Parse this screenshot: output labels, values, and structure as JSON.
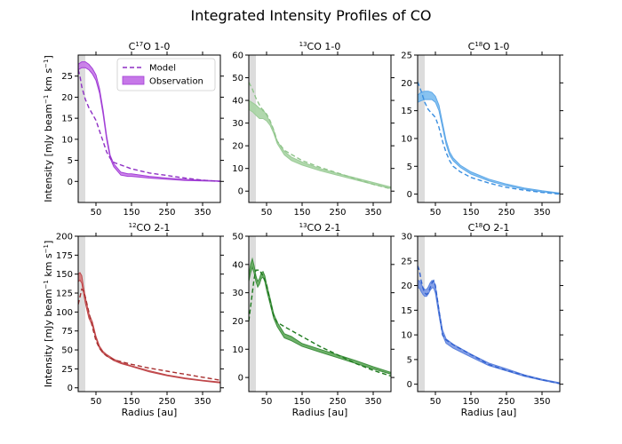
{
  "chart_data": {
    "type": "line",
    "title": "Integrated Intensity Profiles of CO",
    "xlabel": "Radius [au]",
    "ylabel_prefix": "Intensity [mJy beam",
    "ylabel_mid": " km s",
    "ylabel_suffix": "]",
    "ylabel_sup": "−1",
    "xlim": [
      0,
      400
    ],
    "xticks": [
      50,
      150,
      250,
      350
    ],
    "xticklabels": [
      "50",
      "150",
      "250",
      "350"
    ],
    "shaded_region": [
      0,
      20
    ],
    "legend": {
      "placement": "top-right",
      "model_label": "Model",
      "observation_label": "Observation"
    },
    "panels": [
      {
        "title_main": "C",
        "title_sup": "17",
        "title_rest": "O 1-0",
        "color": "#a23fd6",
        "fill": "#c678e8",
        "model_color": "#8e2fc4",
        "ylim": [
          -5,
          30
        ],
        "yticks": [
          0,
          5,
          10,
          15,
          20,
          25
        ],
        "yticklabels": [
          "0",
          "5",
          "10",
          "15",
          "20",
          "25"
        ],
        "model_x": [
          0,
          5,
          10,
          15,
          20,
          25,
          30,
          40,
          50,
          60,
          70,
          80,
          90,
          100,
          150,
          200,
          250,
          300,
          350,
          400
        ],
        "model_y": [
          26.5,
          25,
          22.5,
          21,
          19.5,
          18.5,
          17.5,
          16,
          14.5,
          12,
          9.5,
          7,
          5.5,
          4.5,
          3,
          2,
          1.4,
          0.8,
          0.3,
          0.0
        ],
        "obs_x": [
          0,
          10,
          20,
          30,
          40,
          50,
          60,
          70,
          80,
          90,
          100,
          120,
          140,
          150,
          200,
          250,
          300,
          350,
          400
        ],
        "obs_lo": [
          26.5,
          27,
          27,
          26.5,
          25.5,
          24,
          21,
          16,
          10,
          5.5,
          3.5,
          1.5,
          1.2,
          1.2,
          0.8,
          0.5,
          0.2,
          0.1,
          0.0
        ],
        "obs_hi": [
          27.8,
          28.4,
          28.4,
          27.8,
          26.8,
          25.3,
          22,
          17,
          10.8,
          6.2,
          4.2,
          2.2,
          1.8,
          1.8,
          1.2,
          0.8,
          0.5,
          0.3,
          0.1
        ]
      },
      {
        "title_main": "",
        "title_sup": "13",
        "title_rest": "CO 1-0",
        "color": "#9ccc98",
        "fill": "#a8d4a4",
        "model_color": "#8fc48a",
        "ylim": [
          -5,
          60
        ],
        "yticks": [
          0,
          10,
          20,
          30,
          40,
          50,
          60
        ],
        "yticklabels": [
          "0",
          "10",
          "20",
          "30",
          "40",
          "50",
          "60"
        ],
        "model_x": [
          0,
          10,
          20,
          30,
          40,
          50,
          60,
          70,
          80,
          100,
          150,
          200,
          250,
          300,
          350,
          400
        ],
        "model_y": [
          48,
          45,
          41,
          38,
          35.5,
          34,
          31,
          27,
          22,
          18,
          13.5,
          10.5,
          8,
          5.5,
          3,
          1.0
        ],
        "obs_x": [
          0,
          10,
          20,
          30,
          40,
          50,
          60,
          70,
          80,
          100,
          120,
          150,
          200,
          250,
          300,
          350,
          400
        ],
        "obs_lo": [
          36,
          35,
          33.5,
          32,
          32,
          31,
          29,
          25.5,
          21,
          16,
          13.5,
          11.5,
          9,
          7,
          5,
          3,
          1.2
        ],
        "obs_hi": [
          40,
          39,
          38,
          36.5,
          36,
          33.5,
          30.5,
          27,
          22,
          17.5,
          15,
          12.8,
          10,
          7.8,
          5.8,
          3.8,
          1.8
        ]
      },
      {
        "title_main": "C",
        "title_sup": "18",
        "title_rest": "O 1-0",
        "color": "#5fa8e8",
        "fill": "#7bbcf0",
        "model_color": "#3b8fe0",
        "ylim": [
          -1.5,
          25
        ],
        "yticks": [
          0,
          5,
          10,
          15,
          20,
          25
        ],
        "yticklabels": [
          "0",
          "5",
          "10",
          "15",
          "20",
          "25"
        ],
        "model_x": [
          0,
          10,
          20,
          30,
          40,
          50,
          60,
          70,
          80,
          90,
          100,
          120,
          150,
          200,
          250,
          300,
          350,
          400
        ],
        "model_y": [
          20.2,
          18.5,
          16.5,
          15.2,
          14.5,
          13.8,
          12,
          9.5,
          7.5,
          6,
          5,
          4,
          3,
          2,
          1.2,
          0.7,
          0.3,
          0.0
        ],
        "obs_x": [
          0,
          10,
          20,
          30,
          40,
          50,
          60,
          70,
          80,
          90,
          100,
          120,
          150,
          200,
          250,
          300,
          350,
          400
        ],
        "obs_lo": [
          16.5,
          16.8,
          17,
          17,
          17,
          16.5,
          15,
          12,
          9,
          7,
          6,
          4.8,
          3.6,
          2.4,
          1.5,
          0.9,
          0.4,
          0.1
        ],
        "obs_hi": [
          17.8,
          18.3,
          18.5,
          18.5,
          18.3,
          17.6,
          16,
          12.8,
          9.7,
          7.6,
          6.5,
          5.2,
          4,
          2.7,
          1.8,
          1.1,
          0.6,
          0.2
        ]
      },
      {
        "title_main": "",
        "title_sup": "12",
        "title_rest": "CO 2-1",
        "color": "#c0474a",
        "fill": "#d47a7c",
        "model_color": "#a83030",
        "ylim": [
          -5,
          200
        ],
        "yticks": [
          0,
          25,
          50,
          75,
          100,
          125,
          150,
          175,
          200
        ],
        "yticklabels": [
          "0",
          "25",
          "50",
          "75",
          "100",
          "125",
          "150",
          "175",
          "200"
        ],
        "model_x": [
          0,
          5,
          10,
          15,
          20,
          25,
          30,
          40,
          50,
          60,
          70,
          80,
          100,
          150,
          200,
          250,
          300,
          350,
          400
        ],
        "model_y": [
          110,
          120,
          130,
          128,
          120,
          110,
          100,
          80,
          62,
          52,
          46,
          42,
          37,
          31,
          26,
          22,
          18,
          14,
          10
        ],
        "obs_x": [
          0,
          5,
          10,
          15,
          20,
          30,
          40,
          50,
          60,
          70,
          80,
          100,
          120,
          150,
          200,
          250,
          300,
          350,
          400
        ],
        "obs_lo": [
          140,
          142,
          138,
          125,
          112,
          92,
          82,
          65,
          52,
          46,
          42,
          36,
          32,
          28,
          21,
          16,
          12,
          9,
          6.5
        ],
        "obs_hi": [
          150,
          152,
          148,
          133,
          120,
          98,
          87,
          68,
          55,
          48,
          44,
          38,
          33.5,
          29,
          22.5,
          17,
          13,
          10,
          7.5
        ]
      },
      {
        "title_main": "",
        "title_sup": "13",
        "title_rest": "CO 2-1",
        "color": "#3f8f3f",
        "fill": "#5fa85a",
        "model_color": "#1e7a1e",
        "ylim": [
          -5,
          50
        ],
        "yticks": [
          0,
          10,
          20,
          30,
          40,
          50
        ],
        "yticklabels": [
          "0",
          "10",
          "20",
          "30",
          "40",
          "50"
        ],
        "model_x": [
          0,
          5,
          10,
          15,
          20,
          30,
          40,
          50,
          60,
          70,
          80,
          100,
          150,
          200,
          250,
          300,
          350,
          400
        ],
        "model_y": [
          20,
          25,
          30,
          35,
          38,
          38,
          36,
          33,
          27,
          22,
          19.5,
          18,
          14.5,
          11,
          8,
          5,
          2.5,
          0.5
        ],
        "obs_x": [
          0,
          5,
          10,
          15,
          20,
          25,
          30,
          35,
          40,
          45,
          50,
          60,
          70,
          80,
          100,
          120,
          150,
          200,
          250,
          300,
          350,
          400
        ],
        "obs_lo": [
          34,
          37,
          39,
          37,
          34,
          32,
          33,
          35,
          35.5,
          34,
          31,
          26,
          21,
          18,
          14,
          13,
          11,
          9,
          7,
          5,
          3,
          1.2
        ],
        "obs_hi": [
          36,
          40,
          42,
          39.5,
          36,
          34,
          35,
          37,
          37.5,
          36,
          33,
          28,
          22.5,
          19.5,
          15.5,
          14.5,
          12,
          10,
          8,
          6,
          3.8,
          1.8
        ]
      },
      {
        "title_main": "C",
        "title_sup": "18",
        "title_rest": "O 2-1",
        "color": "#5a80dc",
        "fill": "#7896e4",
        "model_color": "#3060d0",
        "ylim": [
          -1.5,
          30
        ],
        "yticks": [
          0,
          5,
          10,
          15,
          20,
          25,
          30
        ],
        "yticklabels": [
          "0",
          "5",
          "10",
          "15",
          "20",
          "25",
          "30"
        ],
        "model_x": [
          0,
          5,
          10,
          15,
          20,
          25,
          30,
          35,
          40,
          45,
          50,
          60,
          70,
          80,
          100,
          150,
          200,
          250,
          300,
          350,
          400
        ],
        "model_y": [
          24,
          23,
          21,
          19.5,
          18.5,
          18.2,
          18.5,
          19.5,
          20.5,
          21,
          20,
          15,
          10,
          9,
          8,
          6,
          4,
          2.8,
          1.8,
          0.9,
          0.1
        ],
        "obs_x": [
          0,
          5,
          10,
          15,
          20,
          25,
          30,
          35,
          40,
          45,
          50,
          60,
          70,
          80,
          100,
          150,
          200,
          250,
          300,
          350,
          400
        ],
        "obs_lo": [
          19.5,
          19.5,
          18.8,
          18.2,
          17.8,
          17.8,
          18.3,
          19,
          19.5,
          19.5,
          18.5,
          14,
          10,
          8.3,
          7.3,
          5.5,
          3.8,
          2.7,
          1.6,
          0.8,
          0.1
        ],
        "obs_hi": [
          21,
          21,
          20.3,
          19.6,
          19.2,
          19.2,
          19.7,
          20.5,
          21,
          21,
          20,
          15.2,
          11,
          9.2,
          8.1,
          6.1,
          4.3,
          3.1,
          1.9,
          1.0,
          0.3
        ]
      }
    ]
  }
}
